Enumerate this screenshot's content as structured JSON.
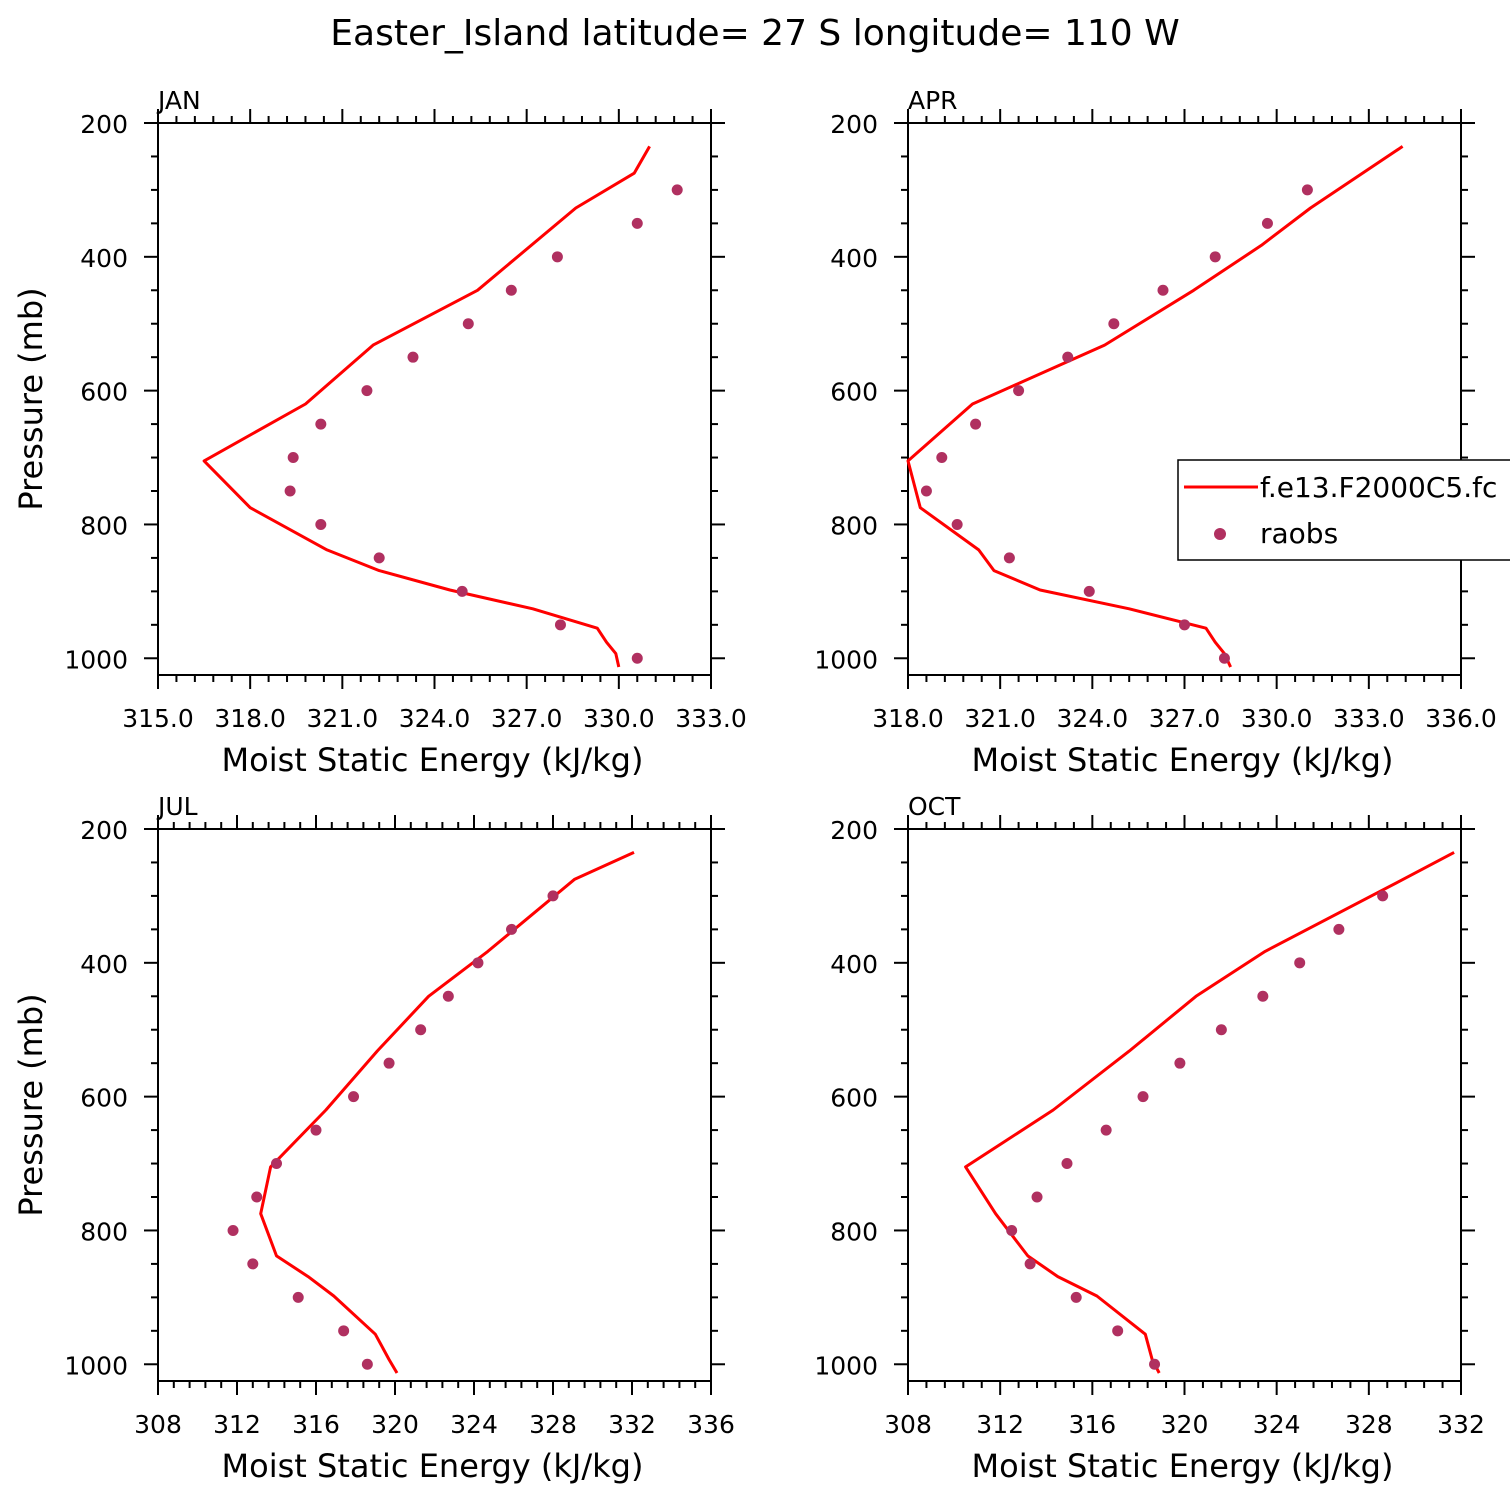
{
  "title": "Easter_Island  latitude= 27 S longitude= 110 W",
  "legend": {
    "model_label": "f.e13.F2000C5.fc",
    "obs_label": "raobs",
    "placement": "right-middle of APR panel"
  },
  "colors": {
    "model": "#ff0000",
    "obs": "#b03060",
    "axis": "#000000"
  },
  "chart_data": [
    {
      "panel": "JAN",
      "type": "line",
      "title": "JAN",
      "xlabel": "Moist Static Energy (kJ/kg)",
      "ylabel": "Pressure (mb)",
      "xlim": [
        315,
        333
      ],
      "ylim": [
        1025,
        200
      ],
      "xticks": [
        315,
        318,
        321,
        324,
        327,
        330,
        333
      ],
      "xtick_labels": [
        "315.0",
        "318.0",
        "321.0",
        "324.0",
        "327.0",
        "330.0",
        "333.0"
      ],
      "yticks": [
        200,
        400,
        600,
        800,
        1000
      ],
      "series": [
        {
          "name": "f.e13.F2000C5.fc",
          "kind": "line",
          "x": [
            330.0,
            329.9,
            329.6,
            329.3,
            327.2,
            324.5,
            322.2,
            320.5,
            318.0,
            316.5,
            319.8,
            322.0,
            325.4,
            328.6,
            330.5,
            331.0
          ],
          "y": [
            1013,
            993,
            976,
            955,
            926,
            898,
            869,
            838,
            775,
            705,
            620,
            532,
            450,
            327,
            275,
            235
          ]
        },
        {
          "name": "raobs",
          "kind": "scatter",
          "x": [
            330.6,
            328.1,
            324.9,
            322.2,
            320.3,
            319.3,
            319.4,
            320.3,
            321.8,
            323.3,
            325.1,
            326.5,
            328.0,
            330.6,
            331.9
          ],
          "y": [
            1000,
            950,
            900,
            850,
            800,
            750,
            700,
            650,
            600,
            550,
            500,
            450,
            400,
            350,
            300
          ]
        }
      ]
    },
    {
      "panel": "APR",
      "type": "line",
      "title": "APR",
      "xlabel": "Moist Static Energy (kJ/kg)",
      "ylabel": "",
      "xlim": [
        318,
        336
      ],
      "ylim": [
        1025,
        200
      ],
      "xticks": [
        318,
        321,
        324,
        327,
        330,
        333,
        336
      ],
      "xtick_labels": [
        "318.0",
        "321.0",
        "324.0",
        "327.0",
        "330.0",
        "333.0",
        "336.0"
      ],
      "yticks": [
        200,
        400,
        600,
        800,
        1000
      ],
      "series": [
        {
          "name": "f.e13.F2000C5.fc",
          "kind": "line",
          "x": [
            328.5,
            328.3,
            328.0,
            327.7,
            325.2,
            322.3,
            320.8,
            320.3,
            318.4,
            318.0,
            320.1,
            324.4,
            327.3,
            329.5,
            331.1,
            334.1
          ],
          "y": [
            1013,
            993,
            976,
            955,
            926,
            898,
            869,
            838,
            775,
            705,
            620,
            532,
            450,
            383,
            327,
            235
          ]
        },
        {
          "name": "raobs",
          "kind": "scatter",
          "x": [
            328.3,
            327.0,
            323.9,
            321.3,
            319.6,
            318.6,
            319.1,
            320.2,
            321.6,
            323.2,
            324.7,
            326.3,
            328.0,
            329.7,
            331.0
          ],
          "y": [
            1000,
            950,
            900,
            850,
            800,
            750,
            700,
            650,
            600,
            550,
            500,
            450,
            400,
            350,
            300
          ]
        }
      ]
    },
    {
      "panel": "JUL",
      "type": "line",
      "title": "JUL",
      "xlabel": "Moist Static Energy (kJ/kg)",
      "ylabel": "Pressure (mb)",
      "xlim": [
        308,
        336
      ],
      "ylim": [
        1025,
        200
      ],
      "xticks": [
        308,
        312,
        316,
        320,
        324,
        328,
        332,
        336
      ],
      "xtick_labels": [
        "308",
        "312",
        "316",
        "320",
        "324",
        "328",
        "332",
        "336"
      ],
      "yticks": [
        200,
        400,
        600,
        800,
        1000
      ],
      "series": [
        {
          "name": "f.e13.F2000C5.fc",
          "kind": "line",
          "x": [
            320.1,
            319.7,
            319.0,
            316.9,
            315.6,
            314.0,
            313.2,
            313.7,
            316.5,
            319.1,
            321.7,
            324.7,
            329.1,
            332.1
          ],
          "y": [
            1013,
            993,
            955,
            898,
            869,
            838,
            775,
            705,
            620,
            532,
            450,
            383,
            275,
            235
          ]
        },
        {
          "name": "raobs",
          "kind": "scatter",
          "x": [
            318.6,
            317.4,
            315.1,
            312.8,
            311.8,
            313.0,
            314.0,
            316.0,
            317.9,
            319.7,
            321.3,
            322.7,
            324.2,
            325.9,
            328.0
          ],
          "y": [
            1000,
            950,
            900,
            850,
            800,
            750,
            700,
            650,
            600,
            550,
            500,
            450,
            400,
            350,
            300
          ]
        }
      ]
    },
    {
      "panel": "OCT",
      "type": "line",
      "title": "OCT",
      "xlabel": "Moist Static Energy (kJ/kg)",
      "ylabel": "",
      "xlim": [
        308,
        332
      ],
      "ylim": [
        1025,
        200
      ],
      "xticks": [
        308,
        312,
        316,
        320,
        324,
        328,
        332
      ],
      "xtick_labels": [
        "308",
        "312",
        "316",
        "320",
        "324",
        "328",
        "332"
      ],
      "yticks": [
        200,
        400,
        600,
        800,
        1000
      ],
      "series": [
        {
          "name": "f.e13.F2000C5.fc",
          "kind": "line",
          "x": [
            318.9,
            318.6,
            318.3,
            316.2,
            314.5,
            313.2,
            311.8,
            310.5,
            314.3,
            317.6,
            320.5,
            323.5,
            329.5,
            331.7
          ],
          "y": [
            1013,
            993,
            955,
            898,
            869,
            838,
            775,
            705,
            620,
            532,
            450,
            383,
            275,
            235
          ]
        },
        {
          "name": "raobs",
          "kind": "scatter",
          "x": [
            318.7,
            317.1,
            315.3,
            313.3,
            312.5,
            313.6,
            314.9,
            316.6,
            318.2,
            319.8,
            321.6,
            323.4,
            325.0,
            326.7,
            328.6
          ],
          "y": [
            1000,
            950,
            900,
            850,
            800,
            750,
            700,
            650,
            600,
            550,
            500,
            450,
            400,
            350,
            300
          ]
        }
      ]
    }
  ]
}
